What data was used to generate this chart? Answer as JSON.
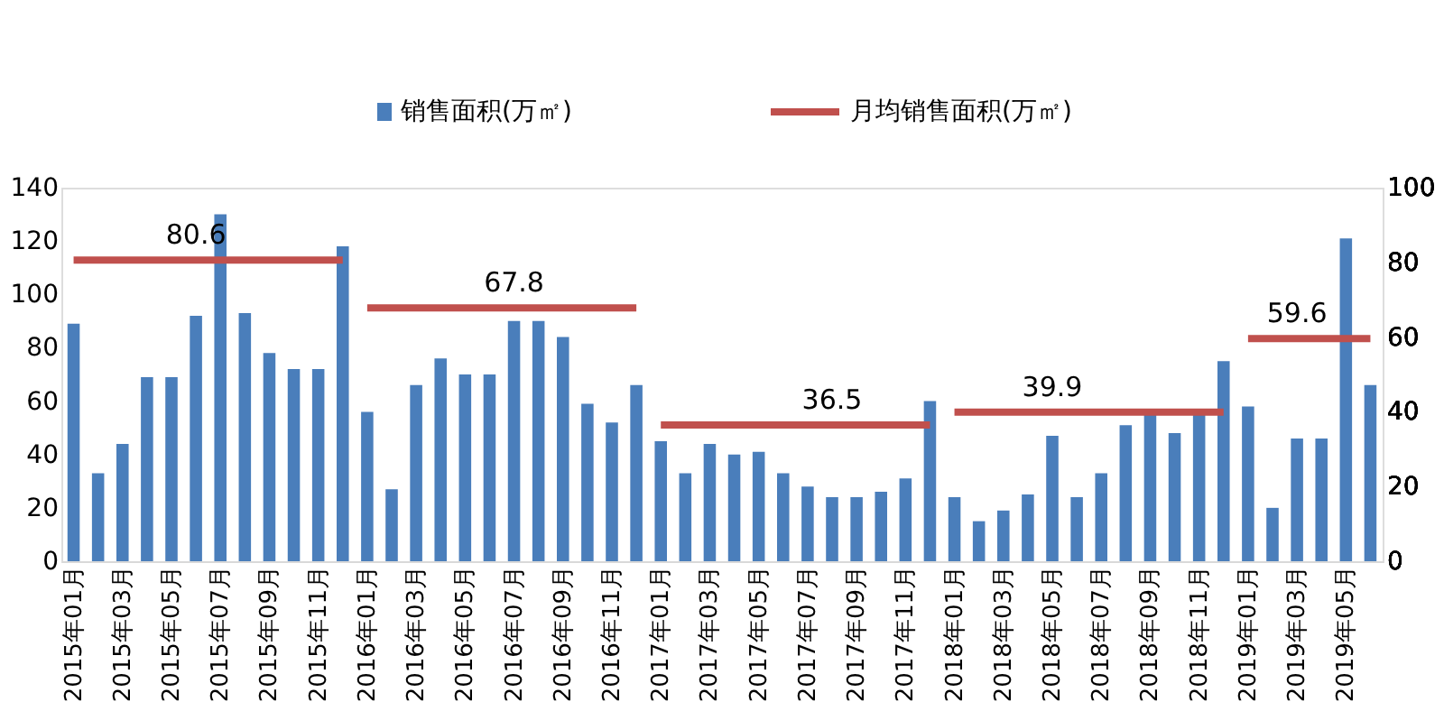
{
  "chart_data": {
    "type": "bar",
    "categories": [
      "2015年01月",
      null,
      "2015年03月",
      null,
      "2015年05月",
      null,
      "2015年07月",
      null,
      "2015年09月",
      null,
      "2015年11月",
      null,
      "2016年01月",
      null,
      "2016年03月",
      null,
      "2016年05月",
      null,
      "2016年07月",
      null,
      "2016年09月",
      null,
      "2016年11月",
      null,
      "2017年01月",
      null,
      "2017年03月",
      null,
      "2017年05月",
      null,
      "2017年07月",
      null,
      "2017年09月",
      null,
      "2017年11月",
      null,
      "2018年01月",
      null,
      "2018年03月",
      null,
      "2018年05月",
      null,
      "2018年07月",
      null,
      "2018年09月",
      null,
      "2018年11月",
      null,
      "2019年01月",
      null,
      "2019年03月",
      null,
      "2019年05月",
      null
    ],
    "series": [
      {
        "name": "销售面积(万㎡)",
        "type": "bar",
        "color": "#4a7ebb",
        "values": [
          89,
          33,
          44,
          69,
          69,
          92,
          130,
          93,
          78,
          72,
          72,
          118,
          56,
          27,
          66,
          76,
          70,
          70,
          90,
          90,
          84,
          59,
          52,
          66,
          45,
          33,
          44,
          40,
          41,
          33,
          28,
          24,
          24,
          26,
          31,
          60,
          24,
          15,
          19,
          25,
          47,
          24,
          33,
          51,
          55,
          48,
          57,
          75,
          58,
          20,
          46,
          46,
          121,
          66
        ]
      },
      {
        "name": "月均销售面积(万㎡)",
        "type": "line",
        "axis": "y2",
        "color": "#c0504d",
        "values": [
          80.6,
          80.6,
          80.6,
          80.6,
          80.6,
          80.6,
          80.6,
          80.6,
          80.6,
          80.6,
          80.6,
          80.6,
          null,
          null,
          null,
          null,
          null,
          null,
          null,
          null,
          null,
          null,
          null,
          null,
          null,
          null,
          null,
          null,
          null,
          null,
          null,
          null,
          null,
          null,
          null,
          null,
          null,
          null,
          null,
          null,
          null,
          null,
          null,
          null,
          null,
          null,
          null,
          null,
          null,
          null,
          null,
          null,
          null,
          null
        ],
        "value_labels": [
          null,
          null,
          null,
          null,
          null,
          "80.6",
          null,
          null,
          null,
          null,
          null,
          null,
          null,
          null,
          null,
          null,
          null,
          null,
          null,
          null,
          null,
          null,
          null,
          null,
          null,
          null,
          null,
          null,
          null,
          null,
          null,
          null,
          null,
          null,
          null,
          null,
          null,
          null,
          null,
          null,
          null,
          null,
          null,
          null,
          null,
          null,
          null,
          null,
          null,
          null,
          null,
          null,
          null,
          null
        ]
      },
      {
        "type": "line",
        "axis": "y2",
        "color": "#c0504d",
        "values": [
          null,
          null,
          null,
          null,
          null,
          null,
          null,
          null,
          null,
          null,
          null,
          null,
          67.8,
          67.8,
          67.8,
          67.8,
          67.8,
          67.8,
          67.8,
          67.8,
          67.8,
          67.8,
          67.8,
          67.8,
          null,
          null,
          null,
          null,
          null,
          null,
          null,
          null,
          null,
          null,
          null,
          null,
          null,
          null,
          null,
          null,
          null,
          null,
          null,
          null,
          null,
          null,
          null,
          null,
          null,
          null,
          null,
          null,
          null,
          null
        ],
        "value_labels": [
          null,
          null,
          null,
          null,
          null,
          null,
          null,
          null,
          null,
          null,
          null,
          null,
          null,
          null,
          null,
          null,
          null,
          null,
          "67.8",
          null,
          null,
          null,
          null,
          null,
          null,
          null,
          null,
          null,
          null,
          null,
          null,
          null,
          null,
          null,
          null,
          null,
          null,
          null,
          null,
          null,
          null,
          null,
          null,
          null,
          null,
          null,
          null,
          null,
          null,
          null,
          null,
          null,
          null,
          null
        ]
      },
      {
        "type": "line",
        "axis": "y2",
        "color": "#c0504d",
        "values": [
          null,
          null,
          null,
          null,
          null,
          null,
          null,
          null,
          null,
          null,
          null,
          null,
          null,
          null,
          null,
          null,
          null,
          null,
          null,
          null,
          null,
          null,
          null,
          null,
          36.5,
          36.5,
          36.5,
          36.5,
          36.5,
          36.5,
          36.5,
          36.5,
          36.5,
          36.5,
          36.5,
          36.5,
          null,
          null,
          null,
          null,
          null,
          null,
          null,
          null,
          null,
          null,
          null,
          null,
          null,
          null,
          null,
          null,
          null,
          null
        ],
        "value_labels": [
          null,
          null,
          null,
          null,
          null,
          null,
          null,
          null,
          null,
          null,
          null,
          null,
          null,
          null,
          null,
          null,
          null,
          null,
          null,
          null,
          null,
          null,
          null,
          null,
          null,
          null,
          null,
          null,
          null,
          null,
          null,
          "36.5",
          null,
          null,
          null,
          null,
          null,
          null,
          null,
          null,
          null,
          null,
          null,
          null,
          null,
          null,
          null,
          null,
          null,
          null,
          null,
          null,
          null,
          null
        ]
      },
      {
        "type": "line",
        "axis": "y2",
        "color": "#c0504d",
        "values": [
          null,
          null,
          null,
          null,
          null,
          null,
          null,
          null,
          null,
          null,
          null,
          null,
          null,
          null,
          null,
          null,
          null,
          null,
          null,
          null,
          null,
          null,
          null,
          null,
          null,
          null,
          null,
          null,
          null,
          null,
          null,
          null,
          null,
          null,
          null,
          null,
          39.9,
          39.9,
          39.9,
          39.9,
          39.9,
          39.9,
          39.9,
          39.9,
          39.9,
          39.9,
          39.9,
          39.9,
          null,
          null,
          null,
          null,
          null,
          null
        ],
        "value_labels": [
          null,
          null,
          null,
          null,
          null,
          null,
          null,
          null,
          null,
          null,
          null,
          null,
          null,
          null,
          null,
          null,
          null,
          null,
          null,
          null,
          null,
          null,
          null,
          null,
          null,
          null,
          null,
          null,
          null,
          null,
          null,
          null,
          null,
          null,
          null,
          null,
          null,
          null,
          null,
          null,
          "39.9",
          null,
          null,
          null,
          null,
          null,
          null,
          null,
          null,
          null,
          null,
          null,
          null,
          null
        ]
      },
      {
        "type": "line",
        "axis": "y2",
        "color": "#c0504d",
        "values": [
          null,
          null,
          null,
          null,
          null,
          null,
          null,
          null,
          null,
          null,
          null,
          null,
          null,
          null,
          null,
          null,
          null,
          null,
          null,
          null,
          null,
          null,
          null,
          null,
          null,
          null,
          null,
          null,
          null,
          null,
          null,
          null,
          null,
          null,
          null,
          null,
          null,
          null,
          null,
          null,
          null,
          null,
          null,
          null,
          null,
          null,
          null,
          null,
          59.6,
          59.6,
          59.6,
          59.6,
          59.6,
          59.6
        ],
        "value_labels": [
          null,
          null,
          null,
          null,
          null,
          null,
          null,
          null,
          null,
          null,
          null,
          null,
          null,
          null,
          null,
          null,
          null,
          null,
          null,
          null,
          null,
          null,
          null,
          null,
          null,
          null,
          null,
          null,
          null,
          null,
          null,
          null,
          null,
          null,
          null,
          null,
          null,
          null,
          null,
          null,
          null,
          null,
          null,
          null,
          null,
          null,
          null,
          null,
          null,
          null,
          "59.6",
          null,
          null,
          null
        ]
      }
    ],
    "ylim": [
      0,
      140
    ],
    "yticks": [
      0,
      20,
      40,
      60,
      80,
      100,
      120,
      140
    ],
    "y2lim": [
      0,
      100
    ],
    "y2ticks": [
      0,
      20,
      40,
      60,
      80,
      100
    ],
    "grid": false,
    "legend": "top"
  }
}
